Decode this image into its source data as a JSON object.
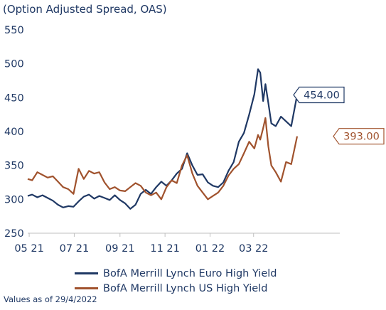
{
  "chart_data": {
    "type": "line",
    "title": "",
    "subtitle": "(Option Adjusted Spread, OAS)",
    "xlabel": "",
    "ylabel": "",
    "ylim": [
      250,
      550
    ],
    "y_ticks": [
      250,
      300,
      350,
      400,
      450,
      500,
      550
    ],
    "x_range": [
      "2021-04-29",
      "2022-04-29"
    ],
    "x_ticks": [
      {
        "label": "05 21",
        "date": "2021-05-01"
      },
      {
        "label": "07 21",
        "date": "2021-07-01"
      },
      {
        "label": "09 21",
        "date": "2021-09-01"
      },
      {
        "label": "11 21",
        "date": "2021-11-01"
      },
      {
        "label": "01 22",
        "date": "2022-01-01"
      },
      {
        "label": "03 22",
        "date": "2022-03-01"
      }
    ],
    "grid": false,
    "legend_position": "bottom",
    "footnote": "Values as of 29/4/2022",
    "series": [
      {
        "name": "BofA Merrill Lynch Euro High Yield",
        "color": "#1f3864",
        "end_label": "454.00",
        "points": [
          [
            "2021-04-29",
            305
          ],
          [
            "2021-05-05",
            307
          ],
          [
            "2021-05-12",
            303
          ],
          [
            "2021-05-19",
            306
          ],
          [
            "2021-05-26",
            302
          ],
          [
            "2021-06-02",
            298
          ],
          [
            "2021-06-09",
            292
          ],
          [
            "2021-06-16",
            288
          ],
          [
            "2021-06-23",
            290
          ],
          [
            "2021-06-30",
            289
          ],
          [
            "2021-07-07",
            297
          ],
          [
            "2021-07-14",
            304
          ],
          [
            "2021-07-21",
            307
          ],
          [
            "2021-07-28",
            301
          ],
          [
            "2021-08-04",
            305
          ],
          [
            "2021-08-11",
            302
          ],
          [
            "2021-08-18",
            299
          ],
          [
            "2021-08-25",
            306
          ],
          [
            "2021-09-01",
            299
          ],
          [
            "2021-09-08",
            294
          ],
          [
            "2021-09-15",
            286
          ],
          [
            "2021-09-22",
            292
          ],
          [
            "2021-09-29",
            308
          ],
          [
            "2021-10-06",
            314
          ],
          [
            "2021-10-13",
            308
          ],
          [
            "2021-10-20",
            318
          ],
          [
            "2021-10-27",
            326
          ],
          [
            "2021-11-03",
            320
          ],
          [
            "2021-11-10",
            328
          ],
          [
            "2021-11-17",
            338
          ],
          [
            "2021-11-24",
            345
          ],
          [
            "2021-12-01",
            368
          ],
          [
            "2021-12-08",
            350
          ],
          [
            "2021-12-15",
            336
          ],
          [
            "2021-12-22",
            337
          ],
          [
            "2021-12-29",
            325
          ],
          [
            "2022-01-05",
            320
          ],
          [
            "2022-01-12",
            318
          ],
          [
            "2022-01-19",
            325
          ],
          [
            "2022-01-26",
            342
          ],
          [
            "2022-02-02",
            355
          ],
          [
            "2022-02-09",
            385
          ],
          [
            "2022-02-16",
            398
          ],
          [
            "2022-02-23",
            425
          ],
          [
            "2022-03-02",
            455
          ],
          [
            "2022-03-07",
            492
          ],
          [
            "2022-03-10",
            487
          ],
          [
            "2022-03-14",
            445
          ],
          [
            "2022-03-17",
            470
          ],
          [
            "2022-03-21",
            442
          ],
          [
            "2022-03-25",
            412
          ],
          [
            "2022-03-31",
            408
          ],
          [
            "2022-04-07",
            422
          ],
          [
            "2022-04-14",
            415
          ],
          [
            "2022-04-21",
            408
          ],
          [
            "2022-04-29",
            454
          ]
        ]
      },
      {
        "name": "BofA Merrill Lynch US High Yield",
        "color": "#a0522d",
        "end_label": "393.00",
        "points": [
          [
            "2021-04-29",
            330
          ],
          [
            "2021-05-05",
            328
          ],
          [
            "2021-05-12",
            340
          ],
          [
            "2021-05-19",
            336
          ],
          [
            "2021-05-26",
            332
          ],
          [
            "2021-06-02",
            334
          ],
          [
            "2021-06-09",
            326
          ],
          [
            "2021-06-16",
            318
          ],
          [
            "2021-06-23",
            315
          ],
          [
            "2021-06-30",
            308
          ],
          [
            "2021-07-07",
            345
          ],
          [
            "2021-07-14",
            330
          ],
          [
            "2021-07-21",
            342
          ],
          [
            "2021-07-28",
            338
          ],
          [
            "2021-08-04",
            340
          ],
          [
            "2021-08-11",
            325
          ],
          [
            "2021-08-18",
            315
          ],
          [
            "2021-08-25",
            318
          ],
          [
            "2021-09-01",
            313
          ],
          [
            "2021-09-08",
            312
          ],
          [
            "2021-09-15",
            318
          ],
          [
            "2021-09-22",
            324
          ],
          [
            "2021-09-29",
            320
          ],
          [
            "2021-10-06",
            310
          ],
          [
            "2021-10-13",
            306
          ],
          [
            "2021-10-20",
            310
          ],
          [
            "2021-10-27",
            300
          ],
          [
            "2021-11-03",
            318
          ],
          [
            "2021-11-10",
            328
          ],
          [
            "2021-11-17",
            324
          ],
          [
            "2021-11-24",
            350
          ],
          [
            "2021-12-01",
            365
          ],
          [
            "2021-12-08",
            338
          ],
          [
            "2021-12-15",
            320
          ],
          [
            "2021-12-22",
            310
          ],
          [
            "2021-12-29",
            300
          ],
          [
            "2022-01-05",
            305
          ],
          [
            "2022-01-12",
            310
          ],
          [
            "2022-01-19",
            320
          ],
          [
            "2022-01-26",
            335
          ],
          [
            "2022-02-02",
            345
          ],
          [
            "2022-02-09",
            352
          ],
          [
            "2022-02-16",
            368
          ],
          [
            "2022-02-23",
            385
          ],
          [
            "2022-03-02",
            375
          ],
          [
            "2022-03-07",
            395
          ],
          [
            "2022-03-10",
            388
          ],
          [
            "2022-03-14",
            405
          ],
          [
            "2022-03-17",
            420
          ],
          [
            "2022-03-21",
            378
          ],
          [
            "2022-03-25",
            350
          ],
          [
            "2022-03-31",
            340
          ],
          [
            "2022-04-07",
            326
          ],
          [
            "2022-04-14",
            355
          ],
          [
            "2022-04-21",
            352
          ],
          [
            "2022-04-29",
            393
          ]
        ]
      }
    ]
  }
}
